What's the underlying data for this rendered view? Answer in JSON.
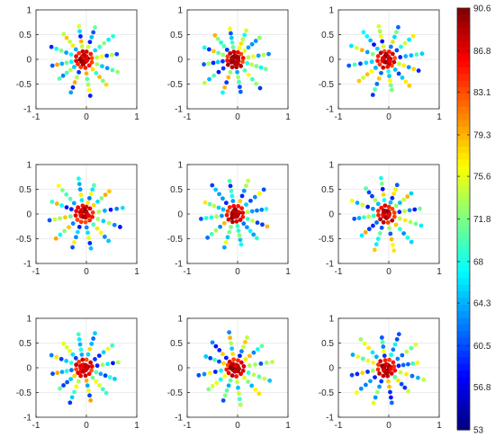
{
  "chart_data": {
    "type": "scatter",
    "layout": "3x3 small multiples",
    "description_free": true,
    "panels": 9,
    "axes": {
      "xlim": [
        -1,
        1
      ],
      "ylim": [
        -1,
        1
      ],
      "xticks": [
        -1,
        0,
        1
      ],
      "yticks": [
        -1,
        -0.5,
        0,
        0.5,
        1
      ],
      "xtick_labels": [
        "-1",
        "0",
        "1"
      ],
      "ytick_labels": [
        "-1",
        "-0.5",
        "0",
        "0.5",
        "1"
      ],
      "grid": true,
      "box": true
    },
    "pattern": {
      "center": [
        -0.05,
        0.0
      ],
      "spokes": 12,
      "points_per_spoke": 7,
      "inner_radius": 0.06,
      "outer_radius": 0.75
    },
    "colorbar": {
      "colormap": "jet",
      "min": 53,
      "max": 90.6,
      "tick_values": [
        90.6,
        86.8,
        83.1,
        79.3,
        75.6,
        71.8,
        68,
        64.3,
        60.5,
        56.8,
        53
      ],
      "tick_labels": [
        "90.6",
        "86.8",
        "83.1",
        "79.3",
        "75.6",
        "71.8",
        "68",
        "64.3",
        "60.5",
        "56.8",
        "53"
      ]
    },
    "panel_seeds": [
      11,
      23,
      37,
      41,
      53,
      67,
      79,
      83,
      97
    ]
  }
}
